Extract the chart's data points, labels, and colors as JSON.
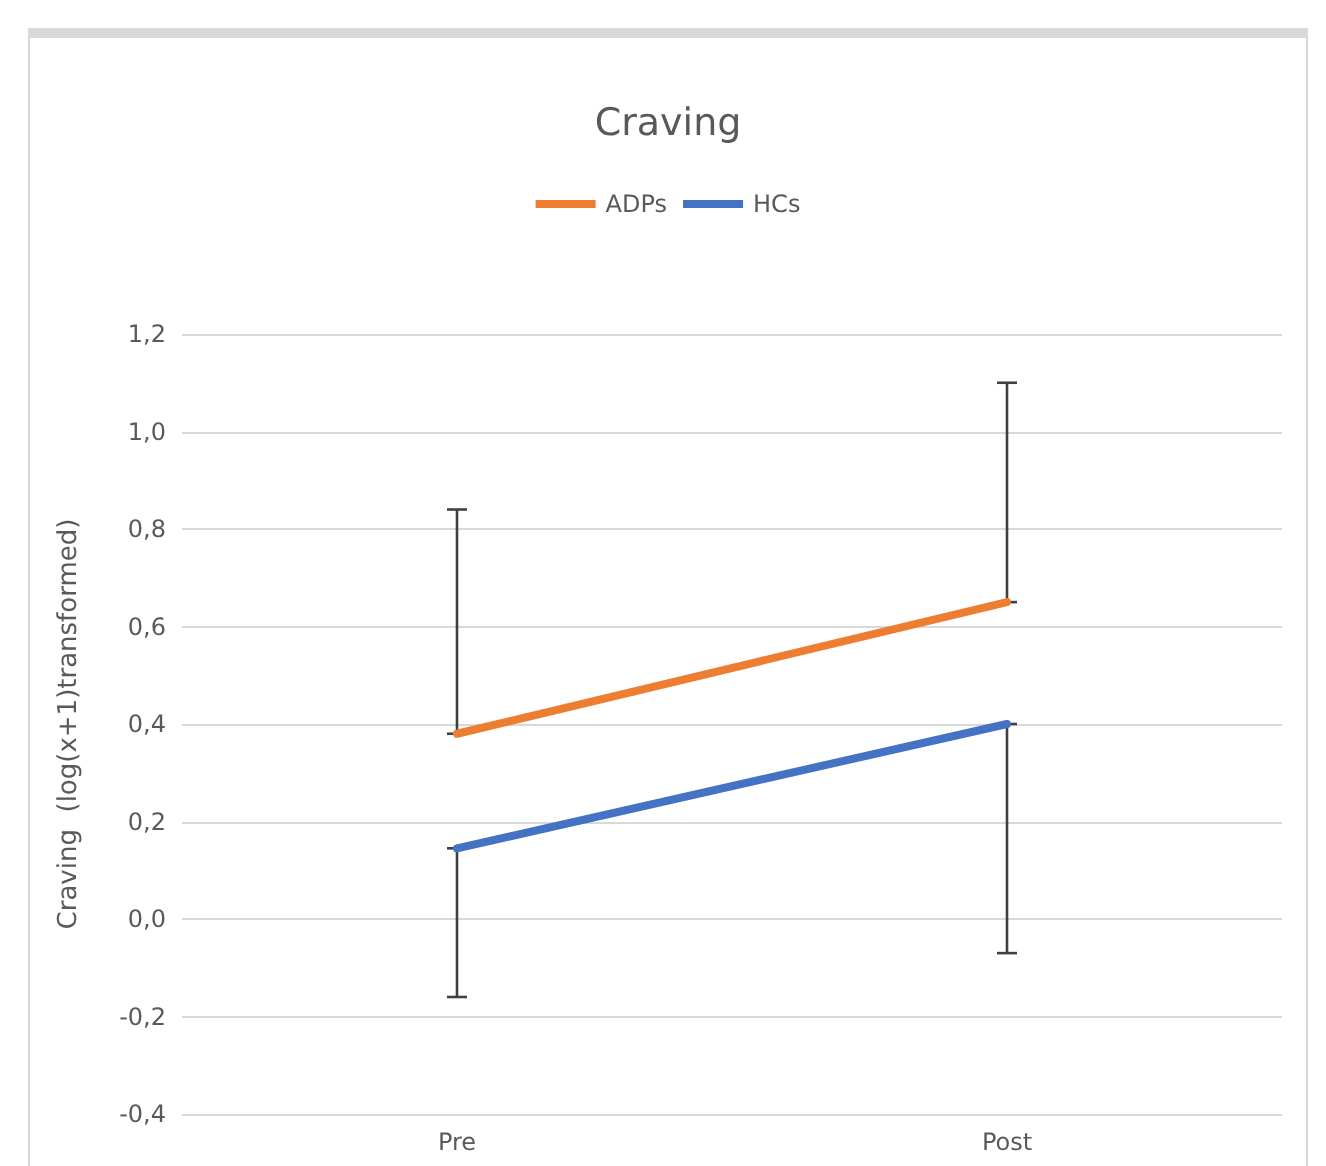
{
  "chart_data": {
    "type": "line",
    "title": "Craving",
    "ylabel": "Craving  (log(x+1)transformed)",
    "categories": [
      "Pre",
      "Post"
    ],
    "series": [
      {
        "name": "ADPs",
        "color": "#ed7d31",
        "values": [
          0.38,
          0.65
        ],
        "errors": [
          [
            0.38,
            0.84
          ],
          [
            0.65,
            1.1
          ]
        ]
      },
      {
        "name": "HCs",
        "color": "#4472c4",
        "values": [
          0.145,
          0.4
        ],
        "errors": [
          [
            -0.16,
            0.145
          ],
          [
            -0.07,
            0.4
          ]
        ]
      }
    ],
    "ylim": [
      -0.4,
      1.2
    ],
    "yticks": [
      {
        "value": -0.4,
        "label": "-0,4"
      },
      {
        "value": -0.2,
        "label": "-0,2"
      },
      {
        "value": 0,
        "label": "0,0"
      },
      {
        "value": 0.2,
        "label": "0,2"
      },
      {
        "value": 0.4,
        "label": "0,4"
      },
      {
        "value": 0.6,
        "label": "0,6"
      },
      {
        "value": 0.8,
        "label": "0,8"
      },
      {
        "value": 1,
        "label": "1,0"
      },
      {
        "value": 1.2,
        "label": "1,2"
      }
    ],
    "grid": "y",
    "legend": "top",
    "marker": "none",
    "line_style": "solid"
  }
}
